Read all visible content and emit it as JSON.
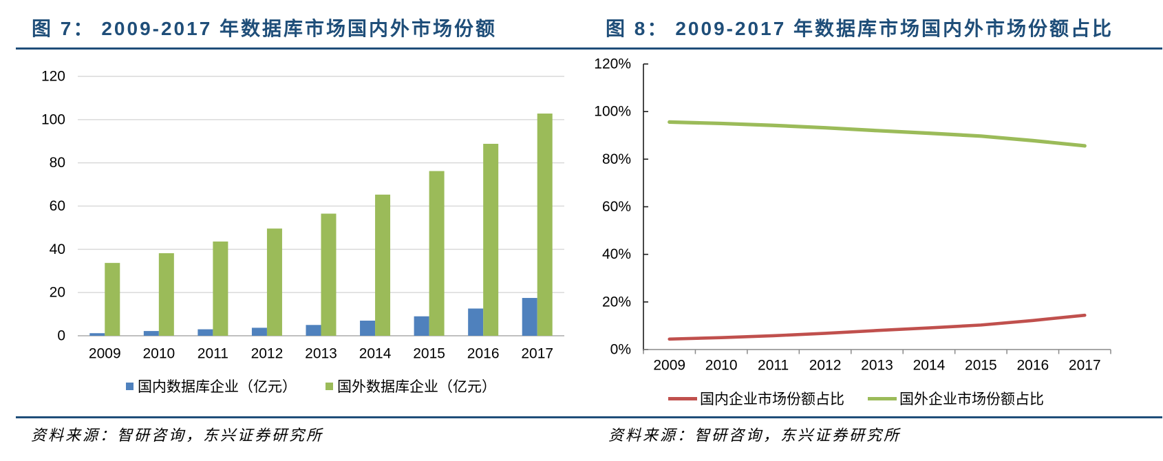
{
  "report": {
    "background": "#FFFFFF",
    "accent_color": "#1F4E79",
    "grid_color": "#D9D9D9",
    "axis_color_left_chart": "#BFBFBF",
    "axis_color_right_chart_x": "#898989",
    "axis_color_right_chart_y": "#1A1A1A",
    "tick_label_color": "#000000"
  },
  "chart_data": [
    {
      "id": "figure-7",
      "type": "bar",
      "title": "图 7：2009-2017 年数据库市场国内外市场份额",
      "title_label": "图 7：",
      "title_text": "2009-2017 年数据库市场国内外市场份额",
      "categories": [
        "2009",
        "2010",
        "2011",
        "2012",
        "2013",
        "2014",
        "2015",
        "2016",
        "2017"
      ],
      "series": [
        {
          "name": "国内数据库企业（亿元）",
          "color": "#4F81BD",
          "values": [
            1.2,
            2.2,
            3.0,
            3.7,
            5.0,
            7.0,
            9.0,
            12.6,
            17.5
          ]
        },
        {
          "name": "国外数据库企业（亿元）",
          "color": "#9BBB59",
          "values": [
            33.7,
            38.2,
            43.6,
            49.6,
            56.5,
            65.3,
            76.2,
            88.8,
            102.8
          ]
        }
      ],
      "xlabel": "",
      "ylabel": "",
      "ylim": [
        0,
        120
      ],
      "ytick_step": 20,
      "ytick_labels": [
        "0",
        "20",
        "40",
        "60",
        "80",
        "100",
        "120"
      ],
      "grid": true,
      "legend_position": "bottom",
      "source": "资料来源：智研咨询，东兴证券研究所"
    },
    {
      "id": "figure-8",
      "type": "line",
      "title": "图 8：2009-2017 年数据库市场国内外市场份额占比",
      "title_label": "图 8：",
      "title_text": "2009-2017 年数据库市场国内外市场份额占比",
      "categories": [
        "2009",
        "2010",
        "2011",
        "2012",
        "2013",
        "2014",
        "2015",
        "2016",
        "2017"
      ],
      "series": [
        {
          "name": "国内企业市场份额占比",
          "color": "#C0504D",
          "values": [
            4.4,
            5.0,
            5.8,
            6.8,
            8.0,
            9.1,
            10.3,
            12.2,
            14.4
          ]
        },
        {
          "name": "国外企业市场份额占比",
          "color": "#9BBB59",
          "values": [
            95.6,
            95.0,
            94.2,
            93.2,
            92.0,
            90.9,
            89.7,
            87.8,
            85.6
          ]
        }
      ],
      "xlabel": "",
      "ylabel": "",
      "ylim": [
        0,
        120
      ],
      "ytick_step": 20,
      "ytick_labels": [
        "0%",
        "20%",
        "40%",
        "60%",
        "80%",
        "100%",
        "120%"
      ],
      "grid": false,
      "legend_position": "bottom",
      "source": "资料来源：智研咨询，东兴证券研究所"
    }
  ]
}
